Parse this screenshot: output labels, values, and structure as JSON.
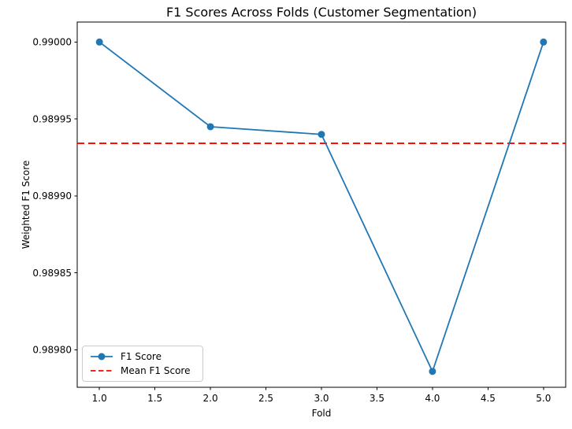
{
  "chart_data": {
    "type": "line",
    "title": "F1 Scores Across Folds (Customer Segmentation)",
    "xlabel": "Fold",
    "ylabel": "Weighted F1 Score",
    "x": [
      1,
      2,
      3,
      4,
      5
    ],
    "series": [
      {
        "name": "F1 Score",
        "values": [
          0.99,
          0.989945,
          0.98994,
          0.989786,
          0.99
        ],
        "color": "#1f77b4",
        "marker": "circle",
        "line_style": "solid"
      }
    ],
    "mean_line": {
      "name": "Mean F1 Score",
      "value": 0.9899342,
      "color": "#ff0000",
      "line_style": "dashed"
    },
    "xlim": [
      0.8,
      5.2
    ],
    "ylim": [
      0.9897757,
      0.990013
    ],
    "x_ticks": [
      1.0,
      1.5,
      2.0,
      2.5,
      3.0,
      3.5,
      4.0,
      4.5,
      5.0
    ],
    "x_tick_labels": [
      "1.0",
      "1.5",
      "2.0",
      "2.5",
      "3.0",
      "3.5",
      "4.0",
      "4.5",
      "5.0"
    ],
    "y_ticks": [
      0.9898,
      0.98985,
      0.9899,
      0.98995,
      0.99
    ],
    "y_tick_labels": [
      "0.98980",
      "0.98985",
      "0.98990",
      "0.98995",
      "0.99000"
    ],
    "grid": false,
    "axis_color": "#000000",
    "legend": {
      "position": "lower left",
      "entries": [
        {
          "label": "F1 Score"
        },
        {
          "label": "Mean F1 Score"
        }
      ]
    }
  }
}
